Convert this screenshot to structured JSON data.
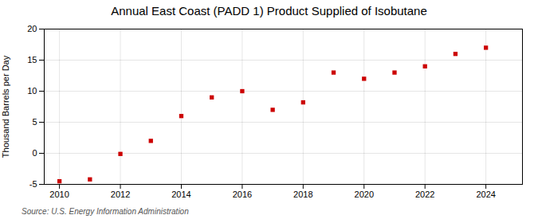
{
  "chart_data": {
    "type": "scatter",
    "title": "Annual East Coast (PADD 1) Product Supplied of Isobutane",
    "ylabel": "Thousand Barrels per Day",
    "source": "Source: U.S. Energy Information Administration",
    "x": [
      2010,
      2011,
      2012,
      2013,
      2014,
      2015,
      2016,
      2017,
      2018,
      2019,
      2020,
      2021,
      2022,
      2023,
      2024
    ],
    "values": [
      -4.5,
      -4.2,
      -0.1,
      2.0,
      6.0,
      9.0,
      10.0,
      7.0,
      8.2,
      13.0,
      12.0,
      13.0,
      14.0,
      16.0,
      17.0
    ],
    "color": "#cc0000",
    "marker": "square",
    "xlim": [
      2009.5,
      2025.2
    ],
    "xticks": [
      2010,
      2012,
      2014,
      2016,
      2018,
      2020,
      2022,
      2024
    ],
    "ylim": [
      -5,
      20
    ],
    "yticks": [
      -5,
      0,
      5,
      10,
      15,
      20
    ],
    "grid": true
  }
}
